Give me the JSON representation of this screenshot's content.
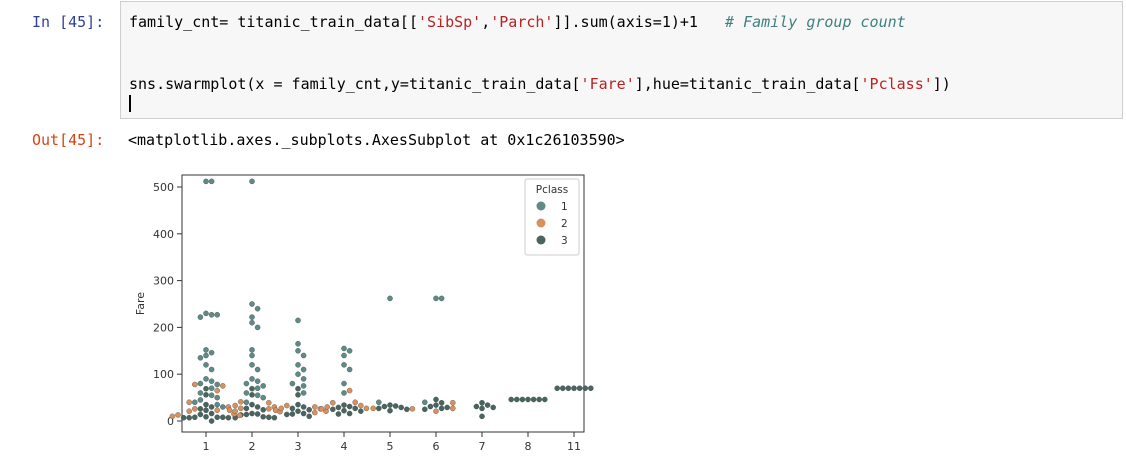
{
  "notebook": {
    "in_prompt": "In [45]:",
    "out_prompt": "Out[45]:",
    "code_line1": {
      "a": "family_cnt= titanic_train_data[[",
      "s1": "'SibSp'",
      "b": ",",
      "s2": "'Parch'",
      "c": "]].sum(axis=1)+1   ",
      "comment": "# Family group count"
    },
    "code_line2": {
      "a": "sns.swarmplot(x = family_cnt,y=titanic_train_data[",
      "s1": "'Fare'",
      "b": "],hue=titanic_train_data[",
      "s2": "'Pclass'",
      "c": "])"
    },
    "output_text": "<matplotlib.axes._subplots.AxesSubplot at 0x1c26103590>"
  },
  "chart_data": {
    "type": "scatter",
    "subtype": "swarm",
    "ylabel": "Fare",
    "xlabel": "",
    "categories": [
      "1",
      "2",
      "3",
      "4",
      "5",
      "6",
      "7",
      "8",
      "11"
    ],
    "ylim": [
      0,
      520
    ],
    "yticks": [
      0,
      100,
      200,
      300,
      400,
      500
    ],
    "legend": {
      "title": "Pclass",
      "placement": "top-right",
      "entries": [
        "1",
        "2",
        "3"
      ]
    },
    "colors": {
      "1": "#5f8a87",
      "2": "#d9905f",
      "3": "#4a6460"
    },
    "series": [
      {
        "name": "1",
        "points": [
          [
            "1",
            512
          ],
          [
            "1",
            512
          ],
          [
            "1",
            230
          ],
          [
            "1",
            227
          ],
          [
            "1",
            222
          ],
          [
            "1",
            227
          ],
          [
            "1",
            152
          ],
          [
            "1",
            146
          ],
          [
            "1",
            140
          ],
          [
            "1",
            135
          ],
          [
            "1",
            120
          ],
          [
            "1",
            110
          ],
          [
            "1",
            90
          ],
          [
            "1",
            85
          ],
          [
            "1",
            80
          ],
          [
            "1",
            78
          ],
          [
            "1",
            70
          ],
          [
            "1",
            60
          ],
          [
            "1",
            55
          ],
          [
            "1",
            50
          ],
          [
            "1",
            45
          ],
          [
            "1",
            40
          ],
          [
            "1",
            35
          ],
          [
            "1",
            30
          ],
          [
            "2",
            512
          ],
          [
            "2",
            250
          ],
          [
            "2",
            240
          ],
          [
            "2",
            222
          ],
          [
            "2",
            210
          ],
          [
            "2",
            200
          ],
          [
            "2",
            152
          ],
          [
            "2",
            140
          ],
          [
            "2",
            120
          ],
          [
            "2",
            110
          ],
          [
            "2",
            90
          ],
          [
            "2",
            85
          ],
          [
            "2",
            80
          ],
          [
            "2",
            75
          ],
          [
            "2",
            70
          ],
          [
            "2",
            60
          ],
          [
            "2",
            55
          ],
          [
            "2",
            50
          ],
          [
            "2",
            40
          ],
          [
            "3",
            215
          ],
          [
            "3",
            165
          ],
          [
            "3",
            150
          ],
          [
            "3",
            140
          ],
          [
            "3",
            120
          ],
          [
            "3",
            110
          ],
          [
            "3",
            100
          ],
          [
            "3",
            90
          ],
          [
            "3",
            80
          ],
          [
            "3",
            75
          ],
          [
            "3",
            60
          ],
          [
            "4",
            155
          ],
          [
            "4",
            150
          ],
          [
            "4",
            140
          ],
          [
            "4",
            120
          ],
          [
            "4",
            110
          ],
          [
            "4",
            80
          ],
          [
            "4",
            60
          ],
          [
            "5",
            262
          ],
          [
            "5",
            40
          ],
          [
            "6",
            262
          ],
          [
            "6",
            262
          ],
          [
            "6",
            40
          ]
        ]
      },
      {
        "name": "2",
        "points": [
          [
            "1",
            78
          ],
          [
            "1",
            75
          ],
          [
            "1",
            65
          ],
          [
            "1",
            40
          ],
          [
            "1",
            30
          ],
          [
            "1",
            26
          ],
          [
            "1",
            23
          ],
          [
            "1",
            21
          ],
          [
            "1",
            15
          ],
          [
            "1",
            13
          ],
          [
            "1",
            12
          ],
          [
            "1",
            10
          ],
          [
            "2",
            41
          ],
          [
            "2",
            39
          ],
          [
            "2",
            33
          ],
          [
            "2",
            30
          ],
          [
            "2",
            27
          ],
          [
            "2",
            26
          ],
          [
            "2",
            23
          ],
          [
            "2",
            21
          ],
          [
            "2",
            20
          ],
          [
            "3",
            33
          ],
          [
            "3",
            30
          ],
          [
            "3",
            27
          ],
          [
            "3",
            26
          ],
          [
            "3",
            23
          ],
          [
            "3",
            21
          ],
          [
            "3",
            18
          ],
          [
            "4",
            65
          ],
          [
            "4",
            40
          ],
          [
            "4",
            39
          ],
          [
            "4",
            33
          ],
          [
            "4",
            30
          ],
          [
            "4",
            27
          ],
          [
            "4",
            26
          ],
          [
            "5",
            27
          ],
          [
            "5",
            26
          ],
          [
            "6",
            39
          ],
          [
            "6",
            27
          ],
          [
            "6",
            21
          ]
        ]
      },
      {
        "name": "3",
        "points": [
          [
            "1",
            69
          ],
          [
            "1",
            56
          ],
          [
            "1",
            35
          ],
          [
            "1",
            30
          ],
          [
            "1",
            26
          ],
          [
            "1",
            23
          ],
          [
            "1",
            16
          ],
          [
            "1",
            14
          ],
          [
            "1",
            9
          ],
          [
            "1",
            8
          ],
          [
            "1",
            8
          ],
          [
            "1",
            8
          ],
          [
            "1",
            7
          ],
          [
            "1",
            7
          ],
          [
            "1",
            7
          ],
          [
            "1",
            0
          ],
          [
            "2",
            69
          ],
          [
            "2",
            56
          ],
          [
            "2",
            35
          ],
          [
            "2",
            30
          ],
          [
            "2",
            27
          ],
          [
            "2",
            24
          ],
          [
            "2",
            16
          ],
          [
            "2",
            15
          ],
          [
            "2",
            14
          ],
          [
            "2",
            13
          ],
          [
            "2",
            9
          ],
          [
            "2",
            8
          ],
          [
            "2",
            7
          ],
          [
            "2",
            7
          ],
          [
            "3",
            69
          ],
          [
            "3",
            56
          ],
          [
            "3",
            35
          ],
          [
            "3",
            30
          ],
          [
            "3",
            27
          ],
          [
            "3",
            24
          ],
          [
            "3",
            21
          ],
          [
            "3",
            16
          ],
          [
            "3",
            15
          ],
          [
            "3",
            14
          ],
          [
            "3",
            10
          ],
          [
            "4",
            34
          ],
          [
            "4",
            31
          ],
          [
            "4",
            29
          ],
          [
            "4",
            27
          ],
          [
            "4",
            25
          ],
          [
            "4",
            22
          ],
          [
            "4",
            21
          ],
          [
            "4",
            16
          ],
          [
            "4",
            15
          ],
          [
            "5",
            34
          ],
          [
            "5",
            32
          ],
          [
            "5",
            31
          ],
          [
            "5",
            29
          ],
          [
            "5",
            27
          ],
          [
            "5",
            25
          ],
          [
            "5",
            22
          ],
          [
            "6",
            46
          ],
          [
            "6",
            39
          ],
          [
            "6",
            34
          ],
          [
            "6",
            31
          ],
          [
            "6",
            29
          ],
          [
            "6",
            27
          ],
          [
            "6",
            25
          ],
          [
            "7",
            39
          ],
          [
            "7",
            34
          ],
          [
            "7",
            31
          ],
          [
            "7",
            29
          ],
          [
            "7",
            27
          ],
          [
            "7",
            10
          ],
          [
            "8",
            46
          ],
          [
            "8",
            46
          ],
          [
            "8",
            46
          ],
          [
            "8",
            46
          ],
          [
            "8",
            46
          ],
          [
            "8",
            46
          ],
          [
            "8",
            46
          ],
          [
            "11",
            70
          ],
          [
            "11",
            70
          ],
          [
            "11",
            70
          ],
          [
            "11",
            70
          ],
          [
            "11",
            70
          ],
          [
            "11",
            70
          ],
          [
            "11",
            70
          ]
        ]
      }
    ]
  }
}
